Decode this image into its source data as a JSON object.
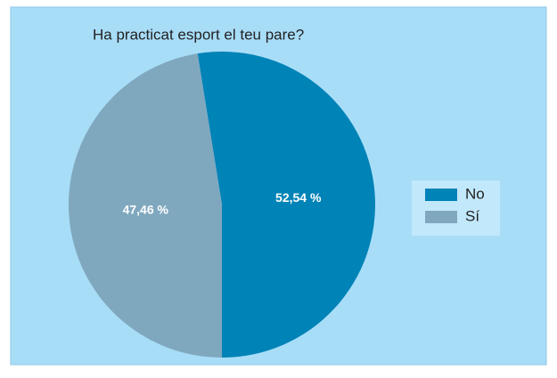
{
  "chart_data": {
    "type": "pie",
    "title": "Ha practicat esport el teu pare?",
    "categories": [
      "No",
      "Sí"
    ],
    "values": [
      52.54,
      47.46
    ],
    "value_labels": [
      "52,54 %",
      "47,46 %"
    ],
    "colors": [
      "#0083b7",
      "#7fa8be"
    ],
    "legend": "right"
  }
}
